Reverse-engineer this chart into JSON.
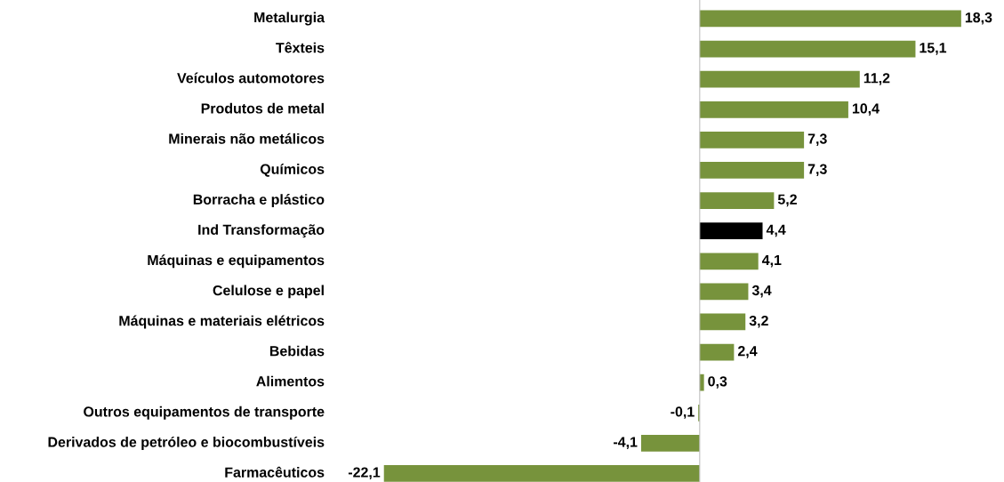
{
  "chart_data": {
    "type": "bar",
    "orientation": "horizontal",
    "categories": [
      "Metalurgia",
      "Têxteis",
      "Veículos automotores",
      "Produtos de metal",
      "Minerais não metálicos",
      "Químicos",
      "Borracha e plástico",
      "Ind Transformação",
      "Máquinas e equipamentos",
      "Celulose e papel",
      "Máquinas e materiais elétricos",
      "Bebidas",
      "Alimentos",
      "Outros equipamentos de transporte",
      "Derivados de petróleo e biocombustíveis",
      "Farmacêuticos"
    ],
    "values": [
      18.3,
      15.1,
      11.2,
      10.4,
      7.3,
      7.3,
      5.2,
      4.4,
      4.1,
      3.4,
      3.2,
      2.4,
      0.3,
      -0.1,
      -4.1,
      -22.1
    ],
    "colors": [
      "#77933c",
      "#77933c",
      "#77933c",
      "#77933c",
      "#77933c",
      "#77933c",
      "#77933c",
      "#000000",
      "#77933c",
      "#77933c",
      "#77933c",
      "#77933c",
      "#77933c",
      "#77933c",
      "#77933c",
      "#77933c"
    ],
    "value_labels": [
      "18,3",
      "15,1",
      "11,2",
      "10,4",
      "7,3",
      "7,3",
      "5,2",
      "4,4",
      "4,1",
      "3,4",
      "3,2",
      "2,4",
      "0,3",
      "-0,1",
      "-4,1",
      "-22,1"
    ]
  }
}
